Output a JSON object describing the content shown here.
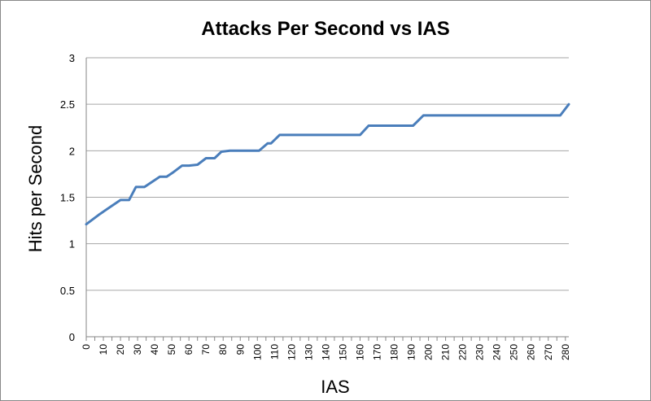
{
  "chart_data": {
    "type": "line",
    "title": "Attacks Per Second vs IAS",
    "xlabel": "IAS",
    "ylabel": "Hits per Second",
    "ylim": [
      0,
      3
    ],
    "yticks": [
      "0",
      "0.5",
      "1",
      "1.5",
      "2",
      "2.5",
      "3"
    ],
    "xticks": [
      "0",
      "10",
      "20",
      "30",
      "40",
      "50",
      "60",
      "70",
      "80",
      "90",
      "100",
      "110",
      "120",
      "130",
      "140",
      "150",
      "160",
      "170",
      "180",
      "190",
      "200",
      "210",
      "220",
      "230",
      "240",
      "250",
      "260",
      "270",
      "280"
    ],
    "xlim": [
      0,
      282
    ],
    "grid": "horizontal",
    "legend": "none",
    "line_color": "#4a7ebb",
    "series": [
      {
        "x": [
          0,
          8,
          16,
          20,
          25,
          29,
          34,
          38,
          43,
          47,
          51,
          56,
          60,
          65,
          70,
          75,
          79,
          84,
          89,
          95,
          101,
          106,
          108,
          113,
          118,
          127,
          135,
          143,
          152,
          160,
          165,
          172,
          180,
          188,
          191,
          197,
          205,
          215,
          225,
          235,
          245,
          255,
          265,
          272,
          277,
          282
        ],
        "y": [
          1.21,
          1.32,
          1.42,
          1.47,
          1.47,
          1.61,
          1.61,
          1.66,
          1.72,
          1.72,
          1.77,
          1.84,
          1.84,
          1.85,
          1.92,
          1.92,
          1.99,
          2.0,
          2.0,
          2.0,
          2.0,
          2.08,
          2.08,
          2.17,
          2.17,
          2.17,
          2.17,
          2.17,
          2.17,
          2.17,
          2.27,
          2.27,
          2.27,
          2.27,
          2.27,
          2.38,
          2.38,
          2.38,
          2.38,
          2.38,
          2.38,
          2.38,
          2.38,
          2.38,
          2.38,
          2.5
        ]
      }
    ]
  }
}
